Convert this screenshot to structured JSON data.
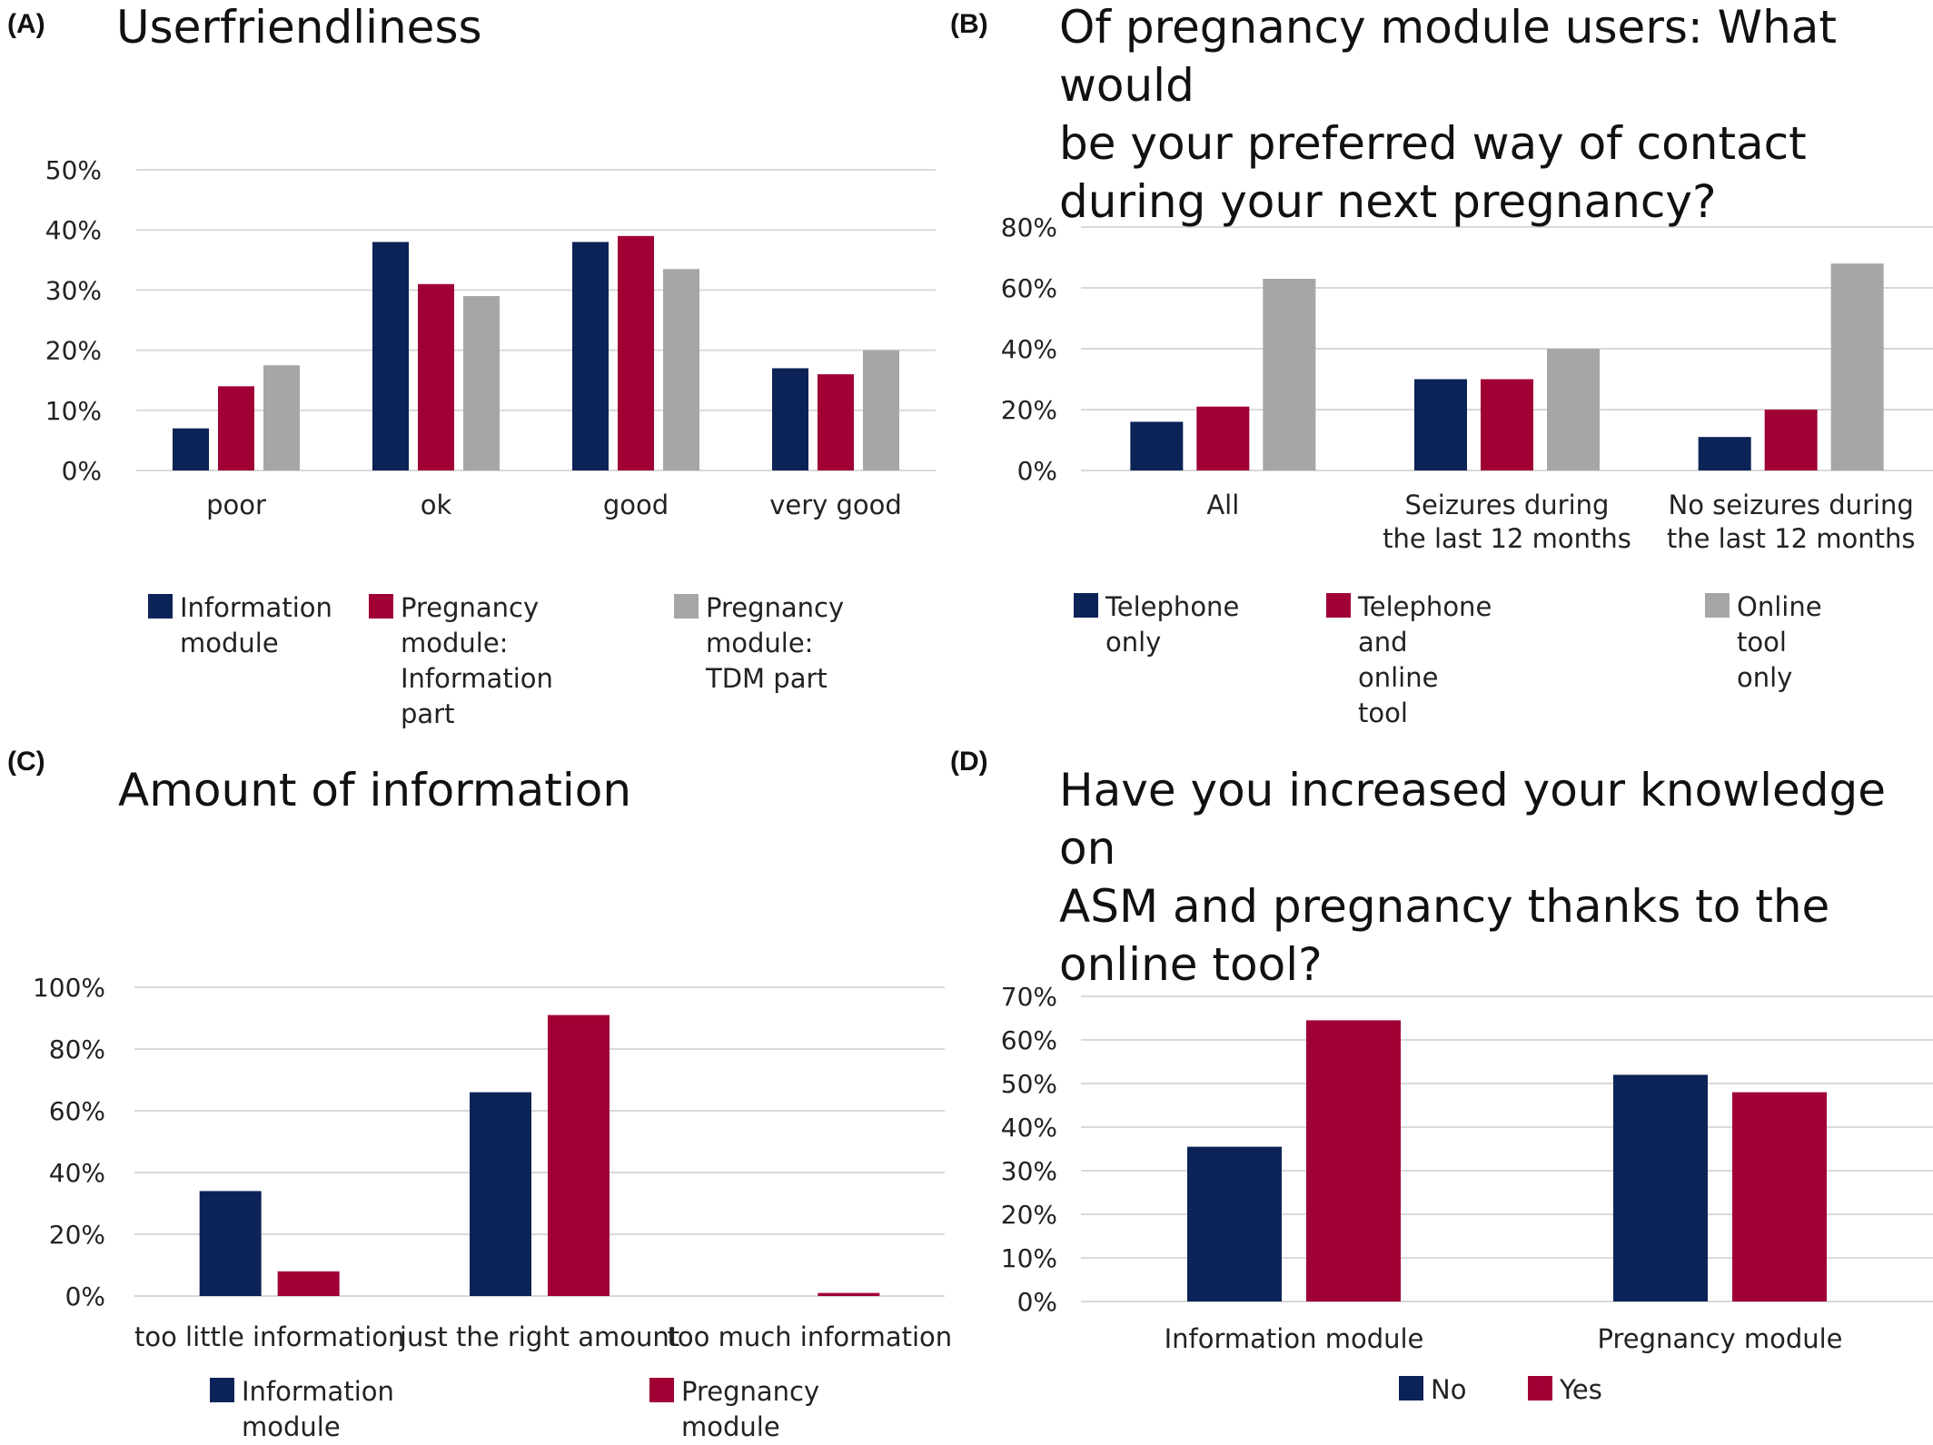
{
  "colors": {
    "navy": "#0c2357",
    "crimson": "#a10035",
    "gray": "#a6a6a6",
    "grid": "#d9d9d9"
  },
  "panels": {
    "a": {
      "label": "(A)",
      "title": "Userfriendliness"
    },
    "b": {
      "label": "(B)",
      "title": "Of pregnancy module users: What would\nbe your preferred way of contact\nduring your next pregnancy?"
    },
    "c": {
      "label": "(C)",
      "title": "Amount of information"
    },
    "d": {
      "label": "(D)",
      "title": "Have you increased your knowledge on\nASM and pregnancy thanks to the\nonline tool?"
    }
  },
  "chart_data": [
    {
      "id": "a",
      "type": "bar",
      "title": "Userfriendliness",
      "categories": [
        "poor",
        "ok",
        "good",
        "very good"
      ],
      "series": [
        {
          "name": "Information module",
          "values": [
            7,
            38,
            38,
            17
          ]
        },
        {
          "name": "Pregnancy module: Information part",
          "values": [
            14,
            31,
            39,
            16
          ]
        },
        {
          "name": "Pregnancy module: TDM part",
          "values": [
            17.5,
            29,
            33.5,
            20
          ]
        }
      ],
      "ylim": [
        0,
        50
      ],
      "yticks": [
        "0%",
        "10%",
        "20%",
        "30%",
        "40%",
        "50%"
      ],
      "grid": true,
      "legend_position": "bottom"
    },
    {
      "id": "b",
      "type": "bar",
      "title": "Of pregnancy module users: What would be your preferred way of contact during your next pregnancy?",
      "categories": [
        "All",
        "Seizures during the last 12 months",
        "No seizures during the last 12 months"
      ],
      "category_labels": [
        "All",
        "Seizures during\nthe last 12 months",
        "No seizures during\nthe last 12 months"
      ],
      "series": [
        {
          "name": "Telephone only",
          "values": [
            16,
            30,
            11
          ]
        },
        {
          "name": "Telephone and online tool",
          "values": [
            21,
            30,
            20
          ]
        },
        {
          "name": "Online tool only",
          "values": [
            63,
            40,
            68
          ]
        }
      ],
      "ylim": [
        0,
        80
      ],
      "yticks": [
        "0%",
        "20%",
        "40%",
        "60%",
        "80%"
      ],
      "grid": true,
      "legend_position": "bottom"
    },
    {
      "id": "c",
      "type": "bar",
      "title": "Amount of information",
      "categories": [
        "too little information",
        "just the right amount",
        "too much information"
      ],
      "series": [
        {
          "name": "Information module",
          "values": [
            34,
            66,
            0
          ]
        },
        {
          "name": "Pregnancy module",
          "values": [
            8,
            91,
            1
          ]
        }
      ],
      "ylim": [
        0,
        100
      ],
      "yticks": [
        "0%",
        "20%",
        "40%",
        "60%",
        "80%",
        "100%"
      ],
      "grid": true,
      "legend_position": "bottom"
    },
    {
      "id": "d",
      "type": "bar",
      "title": "Have you increased your knowledge on ASM and pregnancy thanks to the online tool?",
      "categories": [
        "Information module",
        "Pregnancy module"
      ],
      "series": [
        {
          "name": "No",
          "values": [
            35.5,
            52
          ]
        },
        {
          "name": "Yes",
          "values": [
            64.5,
            48
          ]
        }
      ],
      "ylim": [
        0,
        70
      ],
      "yticks": [
        "0%",
        "10%",
        "20%",
        "30%",
        "40%",
        "50%",
        "60%",
        "70%"
      ],
      "grid": true,
      "legend_position": "bottom"
    }
  ]
}
